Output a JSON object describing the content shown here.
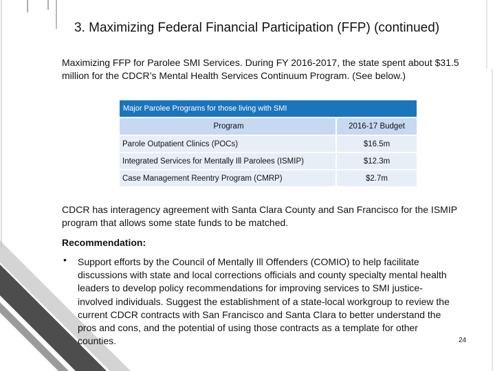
{
  "slide": {
    "title": "3. Maximizing Federal Financial Participation (FFP) (continued)",
    "intro": "Maximizing FFP for Parolee SMI Services. During FY 2016-2017, the state spent about $31.5 million for the CDCR’s Mental Health Services Continuum Program.  (See below.)",
    "table": {
      "caption": "Major Parolee Programs for those living with SMI",
      "headers": [
        "Program",
        "2016-17 Budget"
      ],
      "rows": [
        {
          "program": "Parole Outpatient Clinics (POCs)",
          "budget": "$16.5m"
        },
        {
          "program": "Integrated Services for Mentally Ill Parolees (ISMIP)",
          "budget": "$12.3m"
        },
        {
          "program": "Case Management Reentry Program (CMRP)",
          "budget": "$2.7m"
        }
      ]
    },
    "paragraph2": "CDCR has interagency agreement with Santa Clara County and San Francisco for the ISMIP program that allows some state funds to be matched.",
    "recommendation_heading": "Recommendation:",
    "bullet_symbol": "•",
    "recommendation_text": "Support efforts by the Council of Mentally Ill Offenders (COMIO) to help facilitate discussions with state and local corrections officials and county specialty mental health leaders to develop policy recommendations for improving services to SMI justice-involved individuals. Suggest the establishment of a state-local workgroup to review the current CDCR contracts with San Francisco and Santa Clara to better understand the pros and cons, and the potential of using those contracts as a template for other counties.",
    "page_number": "24"
  },
  "colors": {
    "caption_bg": "#1b75bc",
    "header_bg": "#c6d9f1",
    "row_bg": "#e8eef7",
    "decor_dark": "#4d4d4d",
    "decor_light": "#cfcfcf"
  }
}
